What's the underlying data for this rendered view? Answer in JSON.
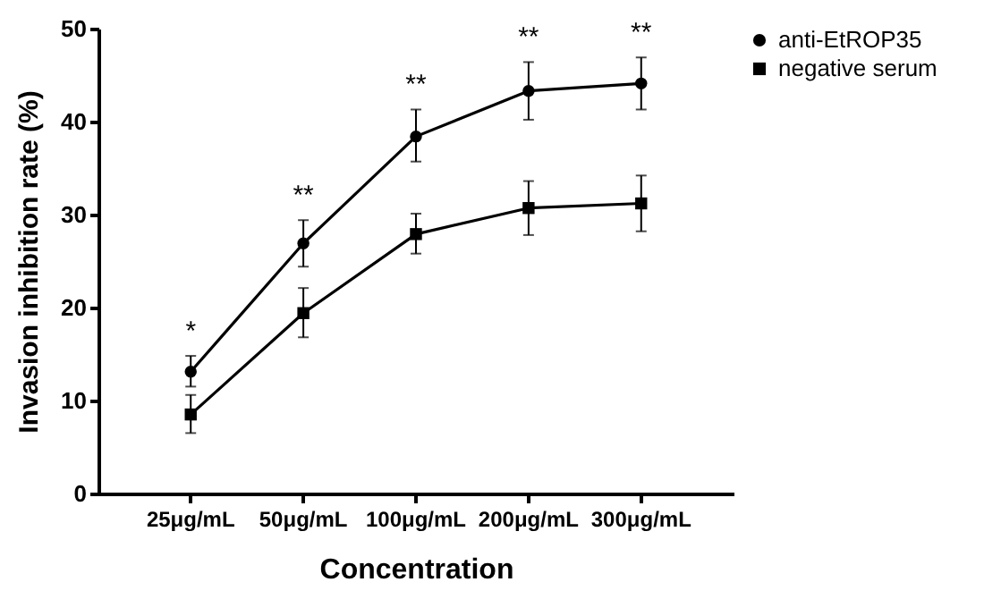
{
  "chart_data": {
    "type": "line",
    "xlabel": "Concentration",
    "ylabel": "Invasion inhibition rate (%)",
    "categories": [
      "25μg/mL",
      "50μg/mL",
      "100μg/mL",
      "200μg/mL",
      "300μg/mL"
    ],
    "series": [
      {
        "name": "anti-EtROP35",
        "color": "#000000",
        "marker": "circle",
        "values": [
          13.1,
          26.9,
          38.4,
          43.3,
          44.1
        ],
        "errors": [
          [
            11.5,
            14.8
          ],
          [
            24.4,
            29.4
          ],
          [
            35.7,
            41.3
          ],
          [
            40.2,
            46.4
          ],
          [
            41.3,
            46.9
          ]
        ]
      },
      {
        "name": "negative serum",
        "color": "#000000",
        "marker": "square",
        "values": [
          8.5,
          19.4,
          27.9,
          30.7,
          31.2
        ],
        "errors": [
          [
            6.5,
            10.6
          ],
          [
            16.8,
            22.1
          ],
          [
            25.8,
            30.1
          ],
          [
            27.8,
            33.6
          ],
          [
            28.2,
            34.2
          ]
        ]
      }
    ],
    "ylim": [
      0,
      50
    ],
    "yticks": [
      0,
      10,
      20,
      30,
      40,
      50
    ],
    "grid": false,
    "legend": "top right",
    "line_style": "solid",
    "annotations": [
      "*",
      "**",
      "**",
      "**",
      "**"
    ]
  }
}
